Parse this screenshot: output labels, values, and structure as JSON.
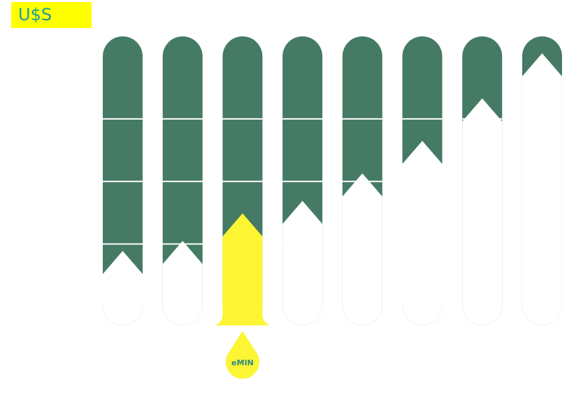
{
  "title": "U$S",
  "colors": {
    "column": "#457a64",
    "fill": "#ffffff",
    "highlight": "#fcf534",
    "badge": "#ffff00",
    "title_text": "#1a9e96",
    "marker_text": "#2e8a85"
  },
  "chart_data": {
    "type": "bar",
    "title": "U$S",
    "categories": [
      "",
      "",
      "",
      "",
      "",
      "",
      "",
      ""
    ],
    "values": [
      0.13,
      0.17,
      0.28,
      0.33,
      0.44,
      0.57,
      0.74,
      0.92
    ],
    "ylim": [
      0,
      1
    ],
    "gridlines": [
      0.25,
      0.5,
      0.75
    ],
    "highlight_index": 2,
    "marker_label": "eMIN"
  }
}
